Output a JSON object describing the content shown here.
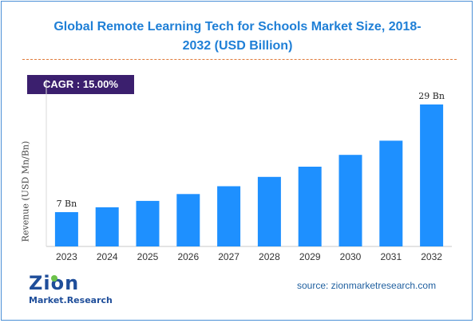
{
  "header": {
    "title_line1": "Global Remote Learning Tech for Schools Market Size, 2018-",
    "title_line2": "2032 (USD Billion)"
  },
  "badge": {
    "cagr": "CAGR :  15.00%"
  },
  "source": "source: zionmarketresearch.com",
  "logo": {
    "main": "Zion",
    "sub": "Market.Research"
  },
  "colors": {
    "bar": "#1e90ff",
    "title": "#1f7fd6",
    "badge": "#3b1f6e",
    "divider": "#e07a3a"
  },
  "chart_data": {
    "type": "bar",
    "title": "Global Remote Learning Tech for Schools Market Size, 2018-2032 (USD Billion)",
    "xlabel": "",
    "ylabel": "Revenue (USD Mn/Bn)",
    "categories": [
      "2023",
      "2024",
      "2025",
      "2026",
      "2027",
      "2028",
      "2029",
      "2030",
      "2031",
      "2032"
    ],
    "values": [
      7,
      8,
      9.3,
      10.7,
      12.3,
      14.2,
      16.3,
      18.7,
      21.6,
      29
    ],
    "data_labels": [
      {
        "index": 0,
        "text": "7 Bn"
      },
      {
        "index": 9,
        "text": "29 Bn"
      }
    ],
    "ylim": [
      0,
      29
    ],
    "grid": false,
    "legend": "none"
  }
}
